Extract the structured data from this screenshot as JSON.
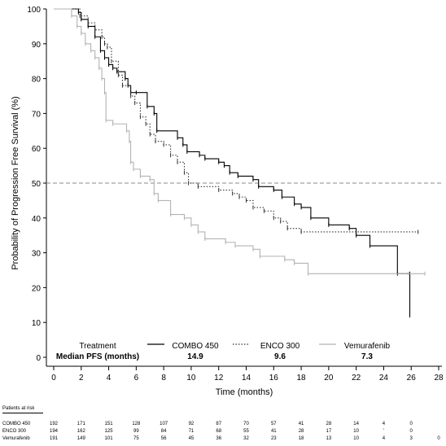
{
  "chart_data": {
    "type": "line",
    "ylabel": "Probability of Progression Free Survival (%)",
    "xlabel": "Time (months)",
    "xlim": [
      0,
      28
    ],
    "ylim": [
      0,
      100
    ],
    "xticks": [
      0,
      2,
      4,
      6,
      8,
      10,
      12,
      14,
      16,
      18,
      20,
      22,
      24,
      26,
      28
    ],
    "yticks": [
      0,
      10,
      20,
      30,
      40,
      50,
      60,
      70,
      80,
      90,
      100
    ],
    "reference_line": 50,
    "grid": false,
    "legend": {
      "treatment_label": "Treatment",
      "median_label": "Median PFS (months)",
      "entries": [
        {
          "name": "COMBO 450",
          "median": "14.9",
          "color": "#000000",
          "style": "solid"
        },
        {
          "name": "ENCO 300",
          "median": "9.6",
          "color": "#333333",
          "style": "dotted"
        },
        {
          "name": "Vemurafenib",
          "median": "7.3",
          "color": "#b3b3b3",
          "style": "solid"
        }
      ]
    },
    "series": [
      {
        "name": "COMBO 450",
        "x": [
          0,
          1.8,
          2.0,
          2.5,
          3.0,
          3.4,
          3.7,
          4.0,
          4.3,
          4.6,
          5.2,
          5.4,
          5.6,
          6.0,
          6.8,
          7.3,
          7.5,
          9.0,
          9.4,
          9.7,
          10.6,
          11.0,
          12.0,
          12.4,
          12.8,
          13.4,
          14.5,
          14.9,
          16.0,
          16.6,
          17.5,
          18.0,
          18.7,
          20.0,
          21.5,
          22.0,
          23.0,
          25.0,
          25.9,
          25.9
        ],
        "y": [
          100,
          99,
          97,
          95,
          92,
          88,
          86,
          84,
          83,
          82,
          80,
          78,
          76,
          76,
          72,
          70,
          65,
          63,
          61,
          59,
          58,
          57,
          56,
          55,
          53,
          52,
          51,
          49,
          48,
          46,
          44,
          43,
          40,
          38,
          37,
          35,
          32,
          24,
          24,
          12
        ]
      },
      {
        "name": "ENCO 300",
        "x": [
          0,
          1.9,
          2.5,
          3.0,
          3.5,
          3.7,
          3.9,
          4.2,
          4.7,
          5.0,
          5.6,
          5.9,
          6.3,
          6.7,
          7.0,
          7.4,
          8.0,
          8.5,
          9.0,
          9.5,
          9.8,
          10.5,
          12.0,
          13.0,
          13.5,
          14.0,
          14.5,
          15.3,
          16.0,
          16.5,
          17.0,
          18.0,
          26.5
        ],
        "y": [
          100,
          98,
          96,
          94,
          92,
          90,
          89,
          85,
          81,
          78,
          75,
          73,
          69,
          67,
          64,
          62,
          61,
          58,
          56,
          53,
          50,
          49,
          48,
          47,
          46,
          45,
          43,
          42,
          40,
          39,
          37,
          36,
          36
        ]
      },
      {
        "name": "Vemurafenib",
        "x": [
          0,
          1.3,
          1.7,
          2.0,
          2.3,
          2.7,
          3.0,
          3.3,
          3.5,
          3.7,
          3.8,
          4.3,
          5.3,
          5.5,
          5.6,
          5.8,
          6.3,
          7.0,
          7.3,
          7.6,
          8.5,
          9.5,
          10.0,
          10.5,
          11.0,
          12.5,
          13.2,
          14.5,
          15.0,
          16.8,
          17.5,
          18.5,
          25.8,
          27.0
        ],
        "y": [
          100,
          98,
          95,
          93,
          90,
          88,
          86,
          83,
          80,
          76,
          68,
          67,
          65,
          62,
          56,
          54,
          52,
          51,
          47,
          45,
          41,
          40,
          38,
          36,
          34,
          33,
          32,
          31,
          29,
          28,
          27,
          24,
          24,
          24
        ]
      }
    ],
    "risk_table": {
      "title": "Patients at risk",
      "times": [
        0,
        2,
        4,
        6,
        8,
        10,
        12,
        14,
        16,
        18,
        20,
        22,
        24,
        26,
        28
      ],
      "rows": [
        {
          "name": "COMBO 450",
          "values": [
            "192",
            "171",
            "151",
            "128",
            "107",
            "92",
            "87",
            "70",
            "57",
            "41",
            "28",
            "14",
            "4",
            "0",
            ""
          ]
        },
        {
          "name": "ENCO 300",
          "values": [
            "194",
            "162",
            "125",
            "99",
            "84",
            "71",
            "68",
            "55",
            "41",
            "28",
            "17",
            "10",
            "'",
            "0",
            ""
          ]
        },
        {
          "name": "Vemurafenib",
          "values": [
            "191",
            "149",
            "101",
            "75",
            "56",
            "45",
            "36",
            "32",
            "23",
            "18",
            "13",
            "10",
            "4",
            "3",
            "0"
          ]
        }
      ]
    }
  }
}
